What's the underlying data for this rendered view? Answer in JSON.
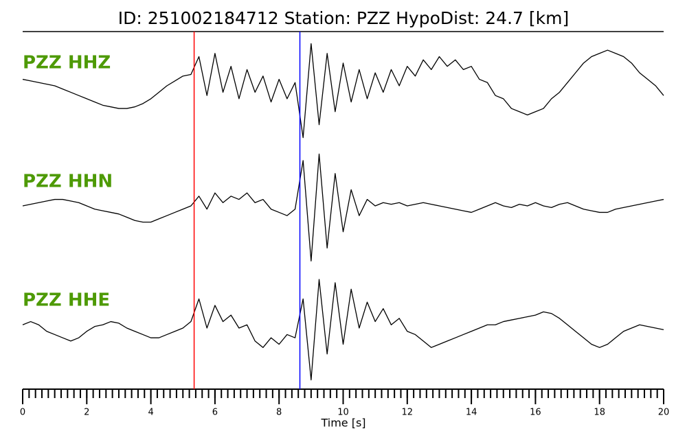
{
  "chart_data": {
    "type": "line",
    "title": "ID: 251002184712   Station: PZZ   HypoDist:    24.7 [km]",
    "x_label": "Time [s]",
    "xlim": [
      0,
      20
    ],
    "xticks": [
      0,
      2,
      4,
      6,
      8,
      10,
      12,
      14,
      16,
      18,
      20
    ],
    "xminorticks": [
      0,
      0.2,
      0.4,
      0.6,
      0.8,
      1,
      1.2,
      1.4,
      1.6,
      1.8,
      2,
      2.2,
      2.4,
      2.6,
      2.8,
      3,
      3.2,
      3.4,
      3.6,
      3.8,
      4,
      4.2,
      4.4,
      4.6,
      4.8,
      5,
      5.2,
      5.4,
      5.6,
      5.8,
      6,
      6.2,
      6.4,
      6.6,
      6.8,
      7,
      7.2,
      7.4,
      7.6,
      7.8,
      8,
      8.2,
      8.4,
      8.6,
      8.8,
      9,
      9.2,
      9.4,
      9.6,
      9.8,
      10,
      10.2,
      10.4,
      10.6,
      10.8,
      11,
      11.2,
      11.4,
      11.6,
      11.8,
      12,
      12.2,
      12.4,
      12.6,
      12.8,
      13,
      13.2,
      13.4,
      13.6,
      13.8,
      14,
      14.2,
      14.4,
      14.6,
      14.8,
      15,
      15.2,
      15.4,
      15.6,
      15.8,
      16,
      16.2,
      16.4,
      16.6,
      16.8,
      17,
      17.2,
      17.4,
      17.6,
      17.8,
      18,
      18.2,
      18.4,
      18.6,
      18.8,
      19,
      19.2,
      19.4,
      19.6,
      19.8,
      20
    ],
    "ylim": [
      -1.8,
      1.8
    ],
    "x": [
      0,
      0.25,
      0.5,
      0.75,
      1,
      1.25,
      1.5,
      1.75,
      2,
      2.25,
      2.5,
      2.75,
      3,
      3.25,
      3.5,
      3.75,
      4,
      4.25,
      4.5,
      4.75,
      5,
      5.25,
      5.5,
      5.75,
      6,
      6.25,
      6.5,
      6.75,
      7,
      7.25,
      7.5,
      7.75,
      8,
      8.25,
      8.5,
      8.75,
      9,
      9.25,
      9.5,
      9.75,
      10,
      10.25,
      10.5,
      10.75,
      11,
      11.25,
      11.5,
      11.75,
      12,
      12.25,
      12.5,
      12.75,
      13,
      13.25,
      13.5,
      13.75,
      14,
      14.25,
      14.5,
      14.75,
      15,
      15.25,
      15.5,
      15.75,
      16,
      16.25,
      16.5,
      16.75,
      17,
      17.25,
      17.5,
      17.75,
      18,
      18.25,
      18.5,
      18.75,
      19,
      19.25,
      19.5,
      19.75,
      20
    ],
    "label_color": "#4e9a06",
    "series": [
      {
        "name": "PZZ HHZ",
        "color": "#000000",
        "values": [
          0.2,
          0.15,
          0.1,
          0.05,
          0,
          -0.1,
          -0.2,
          -0.3,
          -0.4,
          -0.5,
          -0.6,
          -0.65,
          -0.7,
          -0.7,
          -0.65,
          -0.55,
          -0.4,
          -0.2,
          0,
          0.15,
          0.3,
          0.35,
          0.9,
          -0.3,
          1.0,
          -0.2,
          0.6,
          -0.4,
          0.5,
          -0.2,
          0.3,
          -0.5,
          0.2,
          -0.4,
          0.1,
          -1.6,
          1.3,
          -1.2,
          1.0,
          -0.8,
          0.7,
          -0.5,
          0.5,
          -0.4,
          0.4,
          -0.2,
          0.5,
          0,
          0.6,
          0.3,
          0.8,
          0.5,
          0.9,
          0.6,
          0.8,
          0.5,
          0.6,
          0.2,
          0.1,
          -0.3,
          -0.4,
          -0.7,
          -0.8,
          -0.9,
          -0.8,
          -0.7,
          -0.4,
          -0.2,
          0.1,
          0.4,
          0.7,
          0.9,
          1.0,
          1.1,
          1.0,
          0.9,
          0.7,
          0.4,
          0.2,
          0,
          -0.3
        ]
      },
      {
        "name": "PZZ HHN",
        "color": "#000000",
        "values": [
          0,
          0.05,
          0.1,
          0.15,
          0.2,
          0.2,
          0.15,
          0.1,
          0,
          -0.1,
          -0.15,
          -0.2,
          -0.25,
          -0.35,
          -0.45,
          -0.5,
          -0.5,
          -0.4,
          -0.3,
          -0.2,
          -0.1,
          0,
          0.3,
          -0.1,
          0.4,
          0.1,
          0.3,
          0.2,
          0.4,
          0.1,
          0.2,
          -0.1,
          -0.2,
          -0.3,
          -0.1,
          1.4,
          -1.7,
          1.6,
          -1.3,
          1.0,
          -0.8,
          0.5,
          -0.3,
          0.2,
          0,
          0.1,
          0.05,
          0.1,
          0,
          0.05,
          0.1,
          0.05,
          0,
          -0.05,
          -0.1,
          -0.15,
          -0.2,
          -0.1,
          0,
          0.1,
          0,
          -0.05,
          0.05,
          0,
          0.1,
          0,
          -0.05,
          0.05,
          0.1,
          0,
          -0.1,
          -0.15,
          -0.2,
          -0.2,
          -0.1,
          -0.05,
          0,
          0.05,
          0.1,
          0.15,
          0.2
        ]
      },
      {
        "name": "PZZ HHE",
        "color": "#000000",
        "values": [
          0.1,
          0.2,
          0.1,
          -0.1,
          -0.2,
          -0.3,
          -0.4,
          -0.3,
          -0.1,
          0.05,
          0.1,
          0.2,
          0.15,
          0,
          -0.1,
          -0.2,
          -0.3,
          -0.3,
          -0.2,
          -0.1,
          0,
          0.2,
          0.9,
          0,
          0.7,
          0.2,
          0.4,
          0,
          0.1,
          -0.4,
          -0.6,
          -0.3,
          -0.5,
          -0.2,
          -0.3,
          0.9,
          -1.6,
          1.5,
          -0.8,
          1.4,
          -0.5,
          1.2,
          0,
          0.8,
          0.2,
          0.6,
          0.1,
          0.3,
          -0.1,
          -0.2,
          -0.4,
          -0.6,
          -0.5,
          -0.4,
          -0.3,
          -0.2,
          -0.1,
          0,
          0.1,
          0.1,
          0.2,
          0.25,
          0.3,
          0.35,
          0.4,
          0.5,
          0.45,
          0.3,
          0.1,
          -0.1,
          -0.3,
          -0.5,
          -0.6,
          -0.5,
          -0.3,
          -0.1,
          0,
          0.1,
          0.05,
          0,
          -0.05
        ]
      }
    ],
    "picks": [
      {
        "x": 5.35,
        "color": "#ff0000"
      },
      {
        "x": 8.65,
        "color": "#0000ff"
      }
    ]
  }
}
